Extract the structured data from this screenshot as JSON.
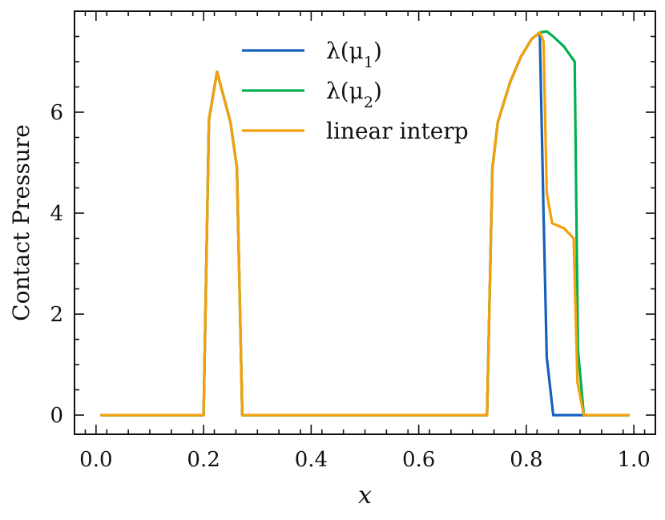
{
  "chart_data": {
    "type": "line",
    "xlabel": "x",
    "ylabel": "Contact Pressure",
    "xlim": [
      -0.04,
      1.04
    ],
    "ylim": [
      -0.38,
      8.0
    ],
    "x_ticks": [
      0.0,
      0.2,
      0.4,
      0.6,
      0.8,
      1.0
    ],
    "x_tick_labels": [
      "0.0",
      "0.2",
      "0.4",
      "0.6",
      "0.8",
      "1.0"
    ],
    "y_ticks": [
      0,
      2,
      4,
      6
    ],
    "y_tick_labels": [
      "0",
      "2",
      "4",
      "6"
    ],
    "grid": false,
    "legend": {
      "position": "top-center"
    },
    "series": [
      {
        "name": "λ(μ1)",
        "name_base": "λ(μ",
        "name_sub": "1",
        "name_close": ")",
        "color": "#1560bd",
        "x": [
          0.01,
          0.2,
          0.21,
          0.225,
          0.25,
          0.262,
          0.272,
          0.5,
          0.727,
          0.737,
          0.747,
          0.77,
          0.79,
          0.81,
          0.825,
          0.832,
          0.838,
          0.85,
          0.99
        ],
        "y": [
          0,
          0,
          5.85,
          6.8,
          5.8,
          4.9,
          0,
          0,
          0,
          4.9,
          5.8,
          6.6,
          7.1,
          7.45,
          7.58,
          4.0,
          1.15,
          0,
          0
        ]
      },
      {
        "name": "λ(μ2)",
        "name_base": "λ(μ",
        "name_sub": "2",
        "name_close": ")",
        "color": "#00b050",
        "x": [
          0.01,
          0.2,
          0.21,
          0.225,
          0.25,
          0.262,
          0.272,
          0.5,
          0.727,
          0.737,
          0.747,
          0.77,
          0.79,
          0.81,
          0.825,
          0.838,
          0.85,
          0.87,
          0.89,
          0.896,
          0.907,
          0.99
        ],
        "y": [
          0,
          0,
          5.85,
          6.8,
          5.8,
          4.9,
          0,
          0,
          0,
          4.9,
          5.8,
          6.6,
          7.1,
          7.45,
          7.58,
          7.6,
          7.5,
          7.3,
          7.0,
          1.3,
          0,
          0
        ]
      },
      {
        "name": "linear interp",
        "name_base": "linear interp",
        "name_sub": "",
        "name_close": "",
        "color": "#f5a00a",
        "x": [
          0.01,
          0.2,
          0.21,
          0.225,
          0.25,
          0.262,
          0.272,
          0.5,
          0.727,
          0.737,
          0.747,
          0.77,
          0.79,
          0.81,
          0.825,
          0.832,
          0.838,
          0.848,
          0.87,
          0.888,
          0.895,
          0.907,
          0.99
        ],
        "y": [
          0,
          0,
          5.85,
          6.8,
          5.8,
          4.9,
          0,
          0,
          0,
          4.9,
          5.8,
          6.6,
          7.1,
          7.45,
          7.58,
          7.4,
          4.4,
          3.8,
          3.7,
          3.5,
          0.65,
          0,
          0
        ]
      }
    ]
  }
}
